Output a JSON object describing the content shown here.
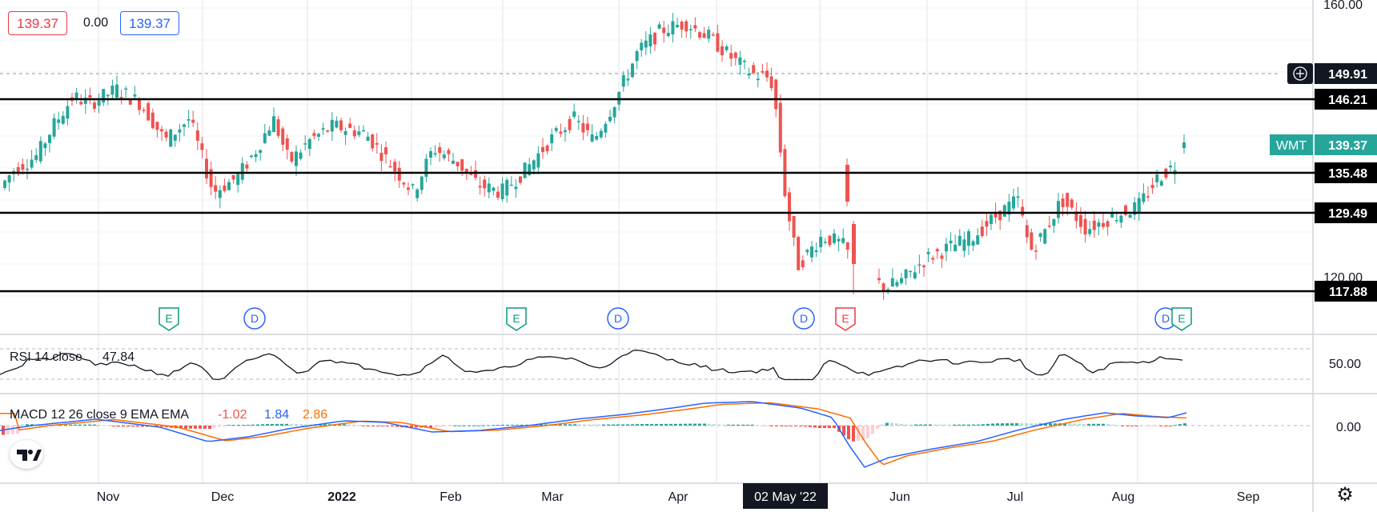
{
  "symbol": "WMT",
  "legend": {
    "change_left": "139.37",
    "change_mid": "0.00",
    "change_right": "139.37"
  },
  "price_axis": {
    "top_label": "160.00",
    "mid_label": "120.00"
  },
  "time_axis": {
    "labels": [
      "Nov",
      "Dec",
      "2022",
      "Feb",
      "Mar",
      "Apr",
      "Jun",
      "Jul",
      "Aug",
      "Sep"
    ],
    "highlight": "02 May '22"
  },
  "price_tags": {
    "crosshair": "149.91",
    "level_1": "146.21",
    "current": "139.37",
    "level_2": "135.48",
    "level_3": "129.49",
    "level_4": "117.88"
  },
  "events": [
    "E",
    "D",
    "E",
    "D",
    "D",
    "E",
    "D",
    "E"
  ],
  "rsi": {
    "label": "RSI 14 close",
    "value": "47.84",
    "axis_label": "50.00"
  },
  "macd": {
    "label": "MACD 12 26 close 9 EMA EMA",
    "hist": "-1.02",
    "macd": "1.84",
    "signal": "2.86",
    "axis_label": "0.00"
  },
  "colors": {
    "up": "#26a69a",
    "down": "#ef5350",
    "macd_line": "#2962ff",
    "signal_line": "#ff6d00",
    "tag_dark": "#131722",
    "event_e": "#089981",
    "event_d": "#2962ff",
    "event_e_red": "#f23645",
    "hist_pos_light": "#b2dfdb",
    "hist_neg_light": "#ffcdd2"
  },
  "icons": {
    "crosshair_add": "plus-circle-icon",
    "settings": "gear-icon",
    "logo": "tradingview-logo"
  }
}
